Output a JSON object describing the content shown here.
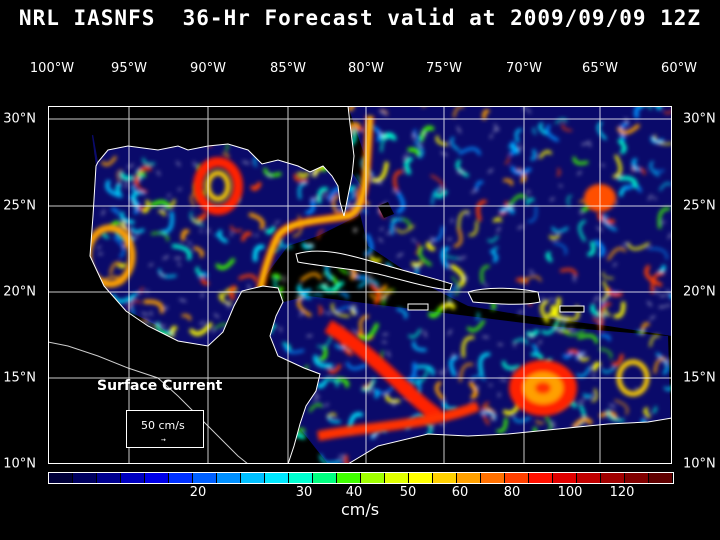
{
  "title": "NRL IASNFS  36-Hr Forecast valid at 2009/09/09 12Z",
  "lon_labels": [
    "100°W",
    "95°W",
    "90°W",
    "85°W",
    "80°W",
    "75°W",
    "70°W",
    "65°W",
    "60°W"
  ],
  "lat_labels": [
    "30°N",
    "25°N",
    "20°N",
    "15°N",
    "10°N"
  ],
  "map_label": "Surface Current",
  "legend": {
    "vector_label": "50 cm/s",
    "arrow": "→"
  },
  "colorbar": {
    "labels": [
      "20",
      "30",
      "40",
      "50",
      "60",
      "80",
      "100",
      "120"
    ],
    "units": "cm/s",
    "colors": [
      "#00003a",
      "#000060",
      "#000090",
      "#0000c0",
      "#0000e8",
      "#0030ff",
      "#0060ff",
      "#0090ff",
      "#00c0ff",
      "#00e8ff",
      "#00ffd0",
      "#00ff80",
      "#40ff00",
      "#a0ff00",
      "#e0ff00",
      "#ffff00",
      "#ffd000",
      "#ffa000",
      "#ff7000",
      "#ff4000",
      "#ff1000",
      "#e00000",
      "#c00000",
      "#a00000",
      "#800000",
      "#600000"
    ]
  },
  "icons": [
    "current-vector-arrow"
  ]
}
